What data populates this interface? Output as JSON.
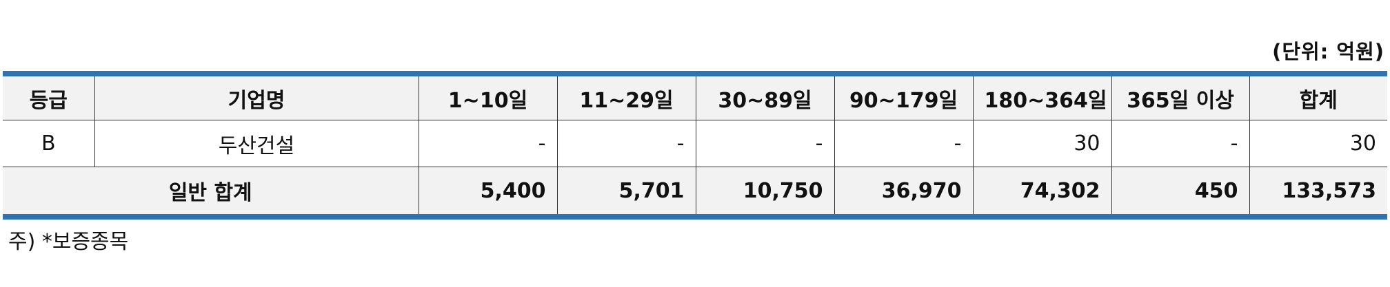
{
  "unit_label": "(단위: 억원)",
  "table": {
    "headers": [
      "등급",
      "기업명",
      "1~10일",
      "11~29일",
      "30~89일",
      "90~179일",
      "180~364일",
      "365일 이상",
      "합계"
    ],
    "rows": [
      {
        "grade": "B",
        "company": "두산건설",
        "values": [
          "-",
          "-",
          "-",
          "-",
          "30",
          "-",
          "30"
        ]
      }
    ],
    "total": {
      "label": "일반 합계",
      "values": [
        "5,400",
        "5,701",
        "10,750",
        "36,970",
        "74,302",
        "450",
        "133,573"
      ]
    }
  },
  "note": "주) *보증종목",
  "colors": {
    "accent": "#2e74b5",
    "header_bg": "#f2f2f2"
  }
}
